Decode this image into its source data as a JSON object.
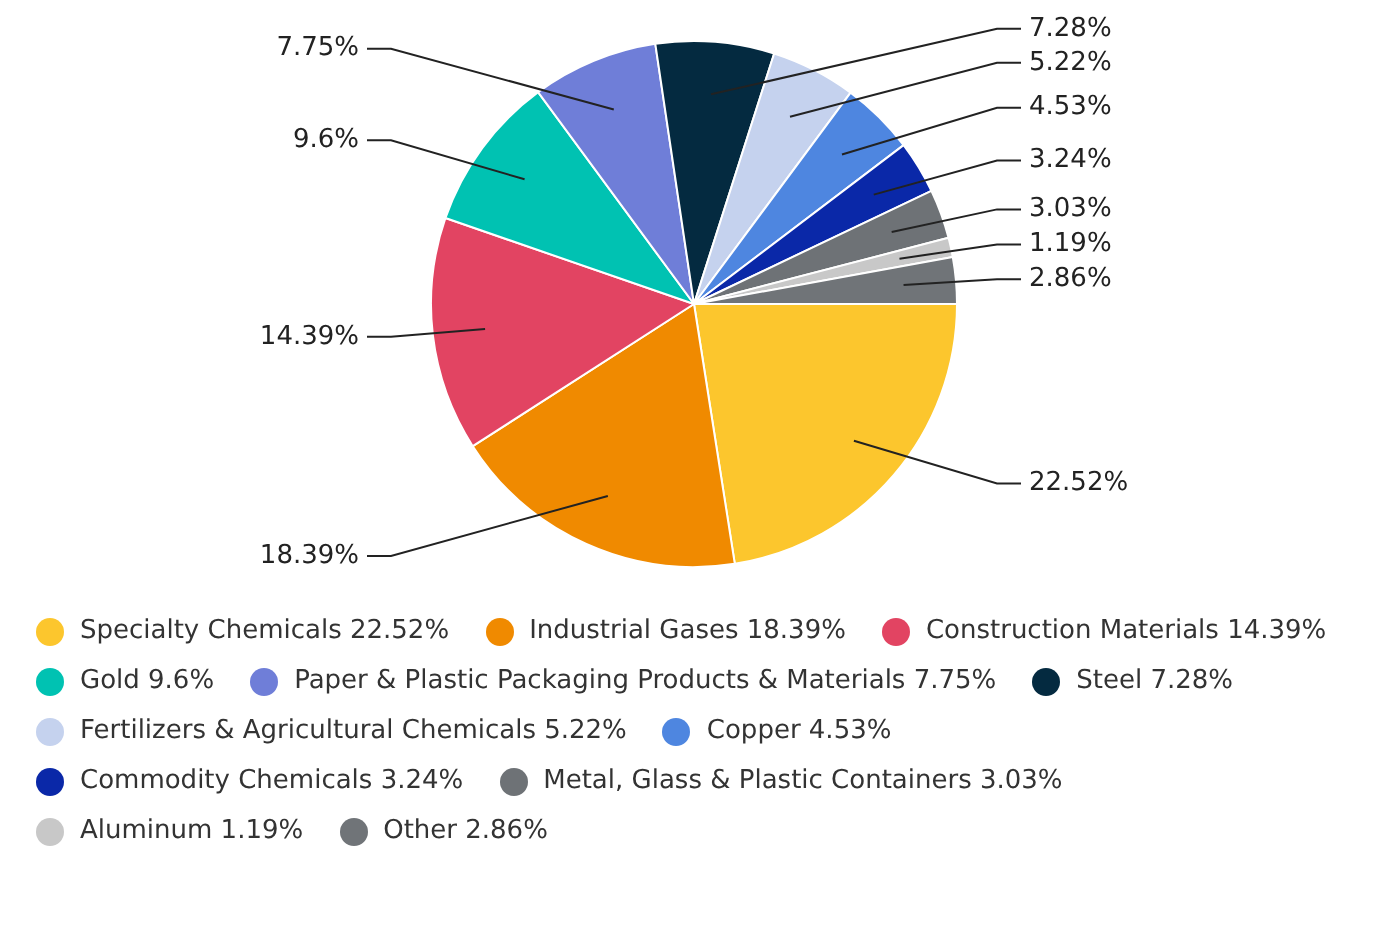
{
  "chart_data": {
    "type": "pie",
    "categories": [
      "Specialty Chemicals",
      "Industrial Gases",
      "Construction Materials",
      "Gold",
      "Paper & Plastic Packaging Products & Materials",
      "Steel",
      "Fertilizers & Agricultural Chemicals",
      "Copper",
      "Commodity Chemicals",
      "Metal, Glass & Plastic Containers",
      "Aluminum",
      "Other"
    ],
    "values": [
      22.52,
      18.39,
      14.39,
      9.6,
      7.75,
      7.28,
      5.22,
      4.53,
      3.24,
      3.03,
      1.19,
      2.86
    ],
    "value_labels": [
      "22.52%",
      "18.39%",
      "14.39%",
      "9.6%",
      "7.75%",
      "7.28%",
      "5.22%",
      "4.53%",
      "3.24%",
      "3.03%",
      "1.19%",
      "2.86%"
    ],
    "colors": [
      "#fcc62d",
      "#f08a00",
      "#e24462",
      "#00c2b2",
      "#6f7ed8",
      "#042a40",
      "#c5d2ee",
      "#4e86e0",
      "#0a28a8",
      "#6e7276",
      "#c8c8c8",
      "#707478"
    ],
    "legend": "bottom"
  }
}
